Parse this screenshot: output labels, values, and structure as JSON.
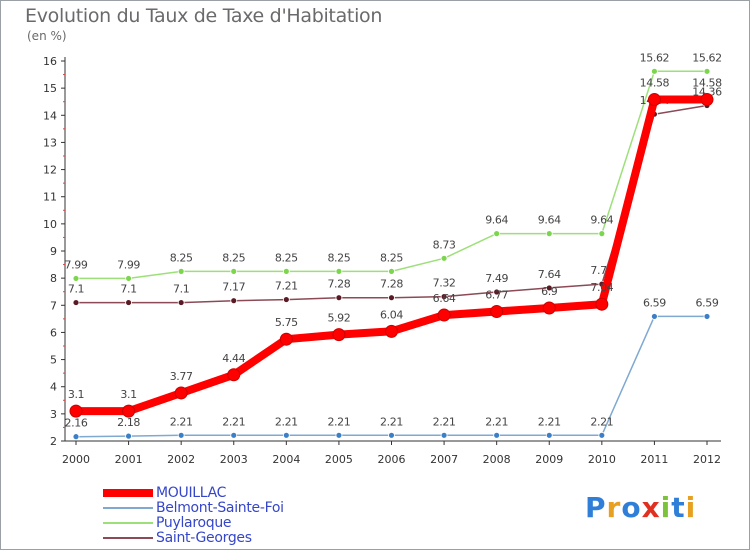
{
  "title": "Evolution du Taux de Taxe d'Habitation",
  "unit_label": "(en %)",
  "logo_text": "Proxiti",
  "chart_data": {
    "type": "line",
    "title": "Evolution du Taux de Taxe d'Habitation",
    "ylabel": "(en %)",
    "xlabel": "",
    "x": [
      "2000",
      "2001",
      "2002",
      "2003",
      "2004",
      "2005",
      "2006",
      "2007",
      "2008",
      "2009",
      "2010",
      "2011",
      "2012"
    ],
    "ylim": [
      2,
      16
    ],
    "yticks": [
      2,
      3,
      4,
      5,
      6,
      7,
      8,
      9,
      10,
      11,
      12,
      13,
      14,
      15,
      16
    ],
    "grid": false,
    "legend_position": "bottom-left",
    "series": [
      {
        "name": "MOUILLAC",
        "color": "#ff0000",
        "values": [
          3.1,
          3.1,
          3.77,
          4.44,
          5.75,
          5.92,
          6.04,
          6.64,
          6.77,
          6.9,
          7.04,
          14.58,
          14.58
        ],
        "labels": [
          "3.1",
          "3.1",
          "3.77",
          "4.44",
          "5.75",
          "5.92",
          "6.04",
          "6.64",
          "6.77",
          "6.9",
          "7.04",
          "14.58",
          "14.58"
        ]
      },
      {
        "name": "Belmont-Sainte-Foi",
        "color": "#7fa9d0",
        "values": [
          2.16,
          2.18,
          2.21,
          2.21,
          2.21,
          2.21,
          2.21,
          2.21,
          2.21,
          2.21,
          2.21,
          6.59,
          6.59
        ],
        "labels": [
          "2.16",
          "2.18",
          "2.21",
          "2.21",
          "2.21",
          "2.21",
          "2.21",
          "2.21",
          "2.21",
          "2.21",
          "2.21",
          "6.59",
          "6.59"
        ]
      },
      {
        "name": "Puylaroque",
        "color": "#9de07a",
        "values": [
          7.99,
          7.99,
          8.25,
          8.25,
          8.25,
          8.25,
          8.25,
          8.73,
          9.64,
          9.64,
          9.64,
          15.62,
          15.62
        ],
        "labels": [
          "7.99",
          "7.99",
          "8.25",
          "8.25",
          "8.25",
          "8.25",
          "8.25",
          "8.73",
          "9.64",
          "9.64",
          "9.64",
          "15.62",
          "15.62"
        ]
      },
      {
        "name": "Saint-Georges",
        "color": "#8b4a55",
        "values": [
          7.1,
          7.1,
          7.1,
          7.17,
          7.21,
          7.28,
          7.28,
          7.32,
          7.49,
          7.64,
          7.78,
          14.04,
          14.36
        ],
        "labels": [
          "7.1",
          "7.1",
          "7.1",
          "7.17",
          "7.21",
          "7.28",
          "7.28",
          "7.32",
          "7.49",
          "7.64",
          "7.78",
          "14.04",
          "14.36"
        ]
      }
    ]
  }
}
